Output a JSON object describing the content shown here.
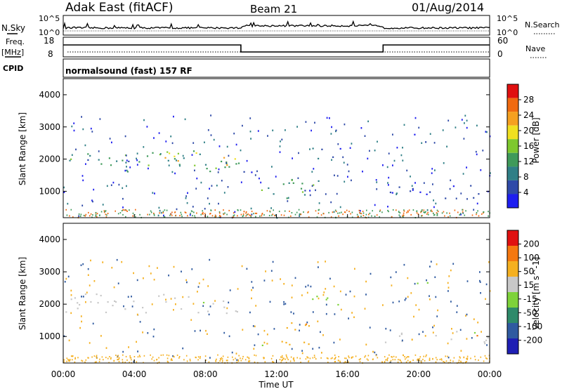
{
  "header": {
    "station": "Adak East (fitACF)",
    "beam": "Beam 21",
    "date": "01/Aug/2014"
  },
  "noise_panel": {
    "left_label": "N.Sky",
    "right_label": "N.Search",
    "left_top_tick": "10^5",
    "left_bottom_tick": "10^0",
    "right_top_tick": "10^5",
    "right_bottom_tick": "10^0"
  },
  "freq_panel": {
    "left_label_1": "Freq.",
    "left_label_2": "[MHz]",
    "left_ticks": [
      "18",
      "8"
    ],
    "right_label": "Nave",
    "right_ticks": [
      "60",
      "0"
    ],
    "freq_segments": [
      {
        "from": 0,
        "to": 10,
        "level": "high"
      },
      {
        "from": 10,
        "to": 18,
        "level": "low"
      },
      {
        "from": 18,
        "to": 24,
        "level": "high"
      }
    ]
  },
  "cpid": {
    "label": "CPID",
    "text": "normalsound (fast) 157 RF"
  },
  "chart_data": [
    {
      "type": "heatmap",
      "name": "power",
      "ylabel": "Slant Range [km]",
      "xlabel": "",
      "xlim": [
        0,
        24
      ],
      "ylim": [
        180,
        4500
      ],
      "yticks": [
        1000,
        2000,
        3000,
        4000
      ],
      "xticks": [
        "00:00",
        "04:00",
        "08:00",
        "12:00",
        "16:00",
        "20:00",
        "00:00"
      ],
      "colorbar": {
        "label": "Power [dB]",
        "ticks": [
          "4",
          "8",
          "12",
          "16",
          "20",
          "24",
          "28"
        ],
        "colors": [
          "#1e1ef0",
          "#2f4aa8",
          "#2f7f86",
          "#3f9a5a",
          "#7ec82e",
          "#f0e020",
          "#f5a020",
          "#f06a10",
          "#e01010"
        ]
      },
      "regions": [
        {
          "t0": 0.0,
          "t1": 10.0,
          "r0": 1750,
          "r1": 2300,
          "level": 0.35
        },
        {
          "t0": 5.5,
          "t1": 10.0,
          "r0": 1800,
          "r1": 2250,
          "level": 0.6
        },
        {
          "t0": 10.0,
          "t1": 10.6,
          "r0": 1300,
          "r1": 2000,
          "level": 0.2
        },
        {
          "t0": 11.0,
          "t1": 15.0,
          "r0": 800,
          "r1": 1400,
          "level": 0.35
        },
        {
          "t0": 14.0,
          "t1": 15.6,
          "r0": 1900,
          "r1": 2400,
          "level": 0.2
        },
        {
          "t0": 18.0,
          "t1": 23.9,
          "r0": 800,
          "r1": 1200,
          "level": 0.15
        },
        {
          "t0": 19.5,
          "t1": 20.6,
          "r0": 2500,
          "r1": 2800,
          "level": 0.15
        }
      ]
    },
    {
      "type": "heatmap",
      "name": "velocity",
      "ylabel": "Slant Range [km]",
      "xlabel": "Time UT",
      "xlim": [
        0,
        24
      ],
      "ylim": [
        180,
        4500
      ],
      "yticks": [
        1000,
        2000,
        3000,
        4000
      ],
      "xticks": [
        "00:00",
        "04:00",
        "08:00",
        "12:00",
        "16:00",
        "20:00",
        "00:00"
      ],
      "colorbar": {
        "label": "Velocity [m s^-1]",
        "ticks": [
          "200",
          "100",
          "50",
          "15",
          "-15",
          "-50",
          "-100",
          "-200"
        ],
        "colors": [
          "#1e1eb4",
          "#2f5aa0",
          "#2e8a6a",
          "#7ed23a",
          "#c8c8c8",
          "#f5b020",
          "#f57810",
          "#e01010"
        ]
      },
      "regions": [
        {
          "t0": 0.0,
          "t1": 10.0,
          "r0": 1750,
          "r1": 2300,
          "level": "grey"
        },
        {
          "t0": 11.4,
          "t1": 13.8,
          "r0": 700,
          "r1": 1450,
          "level": "orange"
        },
        {
          "t0": 11.0,
          "t1": 11.8,
          "r0": 700,
          "r1": 950,
          "level": "green"
        },
        {
          "t0": 11.7,
          "t1": 12.2,
          "r0": 1750,
          "r1": 1900,
          "level": "blue"
        },
        {
          "t0": 14.0,
          "t1": 15.6,
          "r0": 1900,
          "r1": 2400,
          "level": "green"
        },
        {
          "t0": 18.0,
          "t1": 23.9,
          "r0": 800,
          "r1": 1200,
          "level": "grey"
        },
        {
          "t0": 19.5,
          "t1": 20.6,
          "r0": 2500,
          "r1": 2900,
          "level": "green"
        }
      ]
    }
  ]
}
